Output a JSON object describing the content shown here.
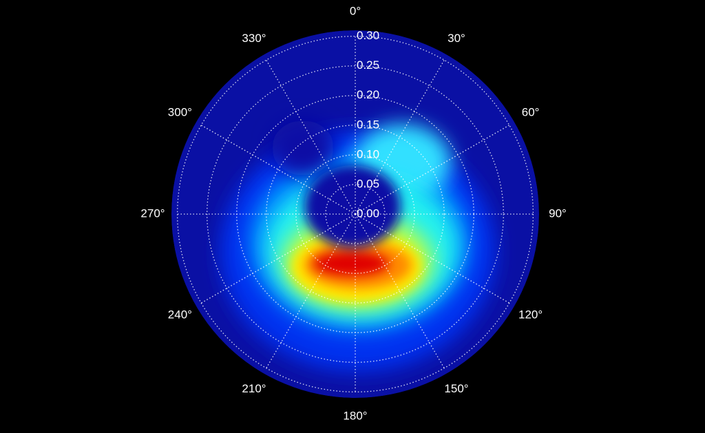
{
  "chart_data": {
    "type": "polar-contour",
    "theta_direction": "clockwise",
    "theta_zero": "top",
    "rlim": [
      0,
      0.31
    ],
    "rticks": [
      {
        "value": 0,
        "label": "0.00"
      },
      {
        "value": 0.05,
        "label": "0.05"
      },
      {
        "value": 0.1,
        "label": "0.10"
      },
      {
        "value": 0.15,
        "label": "0.15"
      },
      {
        "value": 0.2,
        "label": "0.20"
      },
      {
        "value": 0.25,
        "label": "0.25"
      },
      {
        "value": 0.3,
        "label": "0.30"
      }
    ],
    "thetaticks": [
      {
        "value": 0,
        "label": "0°"
      },
      {
        "value": 30,
        "label": "30°"
      },
      {
        "value": 60,
        "label": "60°"
      },
      {
        "value": 90,
        "label": "90°"
      },
      {
        "value": 120,
        "label": "120°"
      },
      {
        "value": 150,
        "label": "150°"
      },
      {
        "value": 180,
        "label": "180°"
      },
      {
        "value": 210,
        "label": "210°"
      },
      {
        "value": 240,
        "label": "240°"
      },
      {
        "value": 270,
        "label": "270°"
      },
      {
        "value": 300,
        "label": "300°"
      },
      {
        "value": 330,
        "label": "330°"
      }
    ],
    "grid": true
  }
}
